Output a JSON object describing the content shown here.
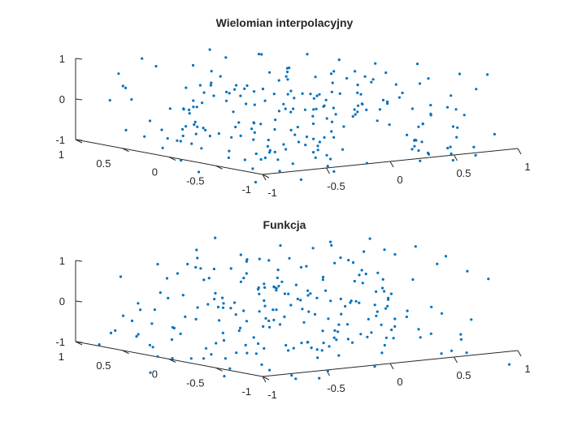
{
  "chart_data": [
    {
      "type": "scatter",
      "title": "Wielomian interpolacyjny",
      "xlabel": "",
      "ylabel": "",
      "zlabel": "",
      "xlim": [
        -1,
        1
      ],
      "ylim": [
        -1,
        1
      ],
      "zlim": [
        -1,
        1
      ],
      "x_ticks": [
        "-1",
        "-0.5",
        "0",
        "0.5",
        "1"
      ],
      "y_ticks": [
        "-1",
        "-0.5",
        "0",
        "0.5",
        "1"
      ],
      "z_ticks": [
        "-1",
        "0",
        "1"
      ],
      "grid": false,
      "marker_color": "#0072BD",
      "point_count": 225,
      "z_range_approx": [
        -1.3,
        1.0
      ],
      "seed": 11
    },
    {
      "type": "scatter",
      "title": "Funkcja",
      "xlabel": "",
      "ylabel": "",
      "zlabel": "",
      "xlim": [
        -1,
        1
      ],
      "ylim": [
        -1,
        1
      ],
      "zlim": [
        -1,
        1
      ],
      "x_ticks": [
        "-1",
        "-0.5",
        "0",
        "0.5",
        "1"
      ],
      "y_ticks": [
        "-1",
        "-0.5",
        "0",
        "0.5",
        "1"
      ],
      "z_ticks": [
        "-1",
        "0",
        "1"
      ],
      "grid": false,
      "marker_color": "#0072BD",
      "point_count": 225,
      "z_range_approx": [
        -1.5,
        1.3
      ],
      "seed": 29
    }
  ]
}
